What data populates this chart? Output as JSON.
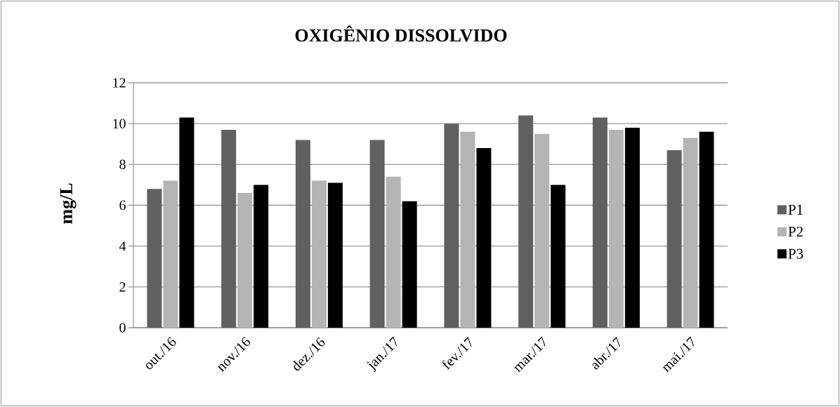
{
  "chart_data": {
    "type": "bar",
    "title": "OXIGÊNIO DISSOLVIDO",
    "ylabel": "mg/L",
    "categories": [
      "out./16",
      "nov./16",
      "dez./16",
      "jan./17",
      "fev./17",
      "mar./17",
      "abr./17",
      "mai./17"
    ],
    "series": [
      {
        "name": "P1",
        "color": "#606060",
        "values": [
          6.8,
          9.7,
          9.2,
          9.2,
          10.0,
          10.4,
          10.3,
          8.7
        ]
      },
      {
        "name": "P2",
        "color": "#b4b4b4",
        "values": [
          7.2,
          6.6,
          7.2,
          7.4,
          9.6,
          9.5,
          9.7,
          9.3
        ]
      },
      {
        "name": "P3",
        "color": "#000000",
        "values": [
          10.3,
          7.0,
          7.1,
          6.2,
          8.8,
          7.0,
          9.8,
          9.6
        ]
      }
    ],
    "ylim": [
      0,
      12
    ],
    "yticks": [
      0,
      2,
      4,
      6,
      8,
      10,
      12
    ],
    "grid": "y",
    "legend": "right"
  }
}
